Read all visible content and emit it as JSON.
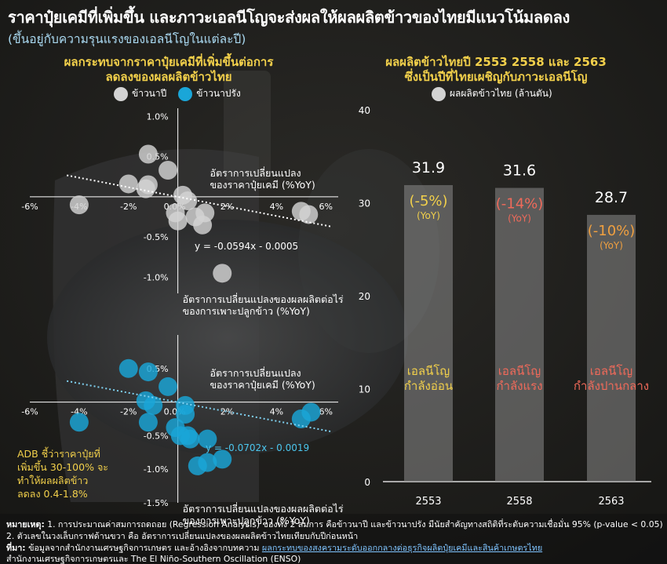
{
  "title": "ราคาปุ๋ยเคมีที่เพิ่มขึ้น และภาวะเอลนีโญจะส่งผลให้ผลผลิตข้าวของไทยมีแนวโน้มลดลง",
  "subtitle": "(ขึ้นอยู่กับความรุนแรงของเอลนีโญในแต่ละปี)",
  "colors": {
    "major_rice": "#d3d3d3",
    "offseason_rice": "#1aa6d8",
    "title_yellow": "#f2d04b",
    "bar": "#8a8a8a",
    "sub_orange": "#f0a040",
    "pct_red": "#f06a5a"
  },
  "left_panel": {
    "title_line1": "ผลกระทบจากราคาปุ๋ยเคมีที่เพิ่มขึ้นต่อการ",
    "title_line2": "ลดลงของผลผลิตข้าวไทย",
    "legend": [
      {
        "label": "ข้าวนาปี",
        "color": "#d3d3d3"
      },
      {
        "label": "ข้าวนาปรัง",
        "color": "#1aa6d8"
      }
    ]
  },
  "right_panel": {
    "title_line1": "ผลผลิตข้าวไทยปี 2553 2558 และ 2563",
    "title_line2": "ซึ่งเป็นปีที่ไทยเผชิญกับภาวะเอลนีโญ",
    "legend": {
      "label": "ผลผลิตข้าวไทย (ล้านตัน)",
      "color": "#d3d3d3"
    }
  },
  "chart_data": [
    {
      "type": "scatter",
      "series_name": "ข้าวนาปี",
      "x_ticks": [
        "-6%",
        "-4%",
        "-2%",
        "0.0%",
        "2%",
        "4%",
        "6%"
      ],
      "y_ticks": [
        "1.0%",
        "0.5%",
        "0.0%",
        "-0.5%",
        "-1.0%"
      ],
      "xlim": [
        -6,
        6.5
      ],
      "ylim": [
        -1.2,
        1.1
      ],
      "x_axis_label_l1": "อัตราการเปลี่ยนแปลง",
      "x_axis_label_l2": "ของราคาปุ๋ยเคมี (%YoY)",
      "y_axis_label_l1": "อัตราการเปลี่ยนแปลงของผลผลิตต่อไร่",
      "y_axis_label_l2": "ของการเพาะปลูกข้าว (%YoY)",
      "points": [
        [
          -1.2,
          0.53
        ],
        [
          -0.4,
          0.33
        ],
        [
          -2,
          0.16
        ],
        [
          -1.2,
          0.15
        ],
        [
          -1.3,
          0.1
        ],
        [
          -4,
          -0.1
        ],
        [
          0.2,
          0.02
        ],
        [
          0.4,
          -0.05
        ],
        [
          -0.1,
          -0.2
        ],
        [
          1.1,
          -0.2
        ],
        [
          0.7,
          -0.25
        ],
        [
          0,
          -0.3
        ],
        [
          1,
          -0.35
        ],
        [
          5,
          -0.18
        ],
        [
          5.3,
          -0.22
        ],
        [
          1.8,
          -0.95
        ]
      ],
      "trendline": {
        "slope": -0.0594,
        "intercept": -0.0005,
        "label": "y = -0.0594x - 0.0005"
      }
    },
    {
      "type": "scatter",
      "series_name": "ข้าวนาปรัง",
      "x_ticks": [
        "-6%",
        "-4%",
        "-2%",
        "0.0%",
        "2%",
        "4%",
        "6%"
      ],
      "y_ticks": [
        "0.5%",
        "0.0%",
        "-0.5%",
        "-1.0%",
        "-1.5%"
      ],
      "xlim": [
        -6,
        6.5
      ],
      "ylim": [
        -1.5,
        1.0
      ],
      "x_axis_label_l1": "อัตราการเปลี่ยนแปลง",
      "x_axis_label_l2": "ของราคาปุ๋ยเคมี (%YoY)",
      "y_axis_label_l1": "อัตราการเปลี่ยนแปลงของผลผลิตต่อไร่",
      "y_axis_label_l2": "ของการเพาะปลูกข้าว (%YoY)",
      "points": [
        [
          -2,
          0.5
        ],
        [
          -1.2,
          0.45
        ],
        [
          -0.4,
          0.23
        ],
        [
          -1.3,
          0.02
        ],
        [
          -1,
          -0.05
        ],
        [
          0.3,
          -0.05
        ],
        [
          0.3,
          -0.18
        ],
        [
          -0.1,
          -0.38
        ],
        [
          -4,
          -0.3
        ],
        [
          -1.2,
          -0.3
        ],
        [
          0.1,
          -0.5
        ],
        [
          0.4,
          -0.5
        ],
        [
          0.5,
          -0.55
        ],
        [
          1.2,
          -0.55
        ],
        [
          0.8,
          -0.95
        ],
        [
          1.2,
          -0.9
        ],
        [
          1.8,
          -0.85
        ],
        [
          5,
          -0.25
        ],
        [
          5.4,
          -0.15
        ]
      ],
      "trendline": {
        "slope": -0.0702,
        "intercept": -0.0019,
        "label": "y = -0.0702x - 0.0019"
      }
    },
    {
      "type": "bar",
      "categories": [
        "2553",
        "2558",
        "2563"
      ],
      "values": [
        31.9,
        31.6,
        28.7
      ],
      "value_labels": [
        "31.9",
        "31.6",
        "28.7"
      ],
      "ylim": [
        0,
        40
      ],
      "y_ticks": [
        "0",
        "10",
        "20",
        "30",
        "40"
      ],
      "pct_labels": [
        "(-5%)",
        "(-14%)",
        "(-10%)"
      ],
      "yoy_label": "(YoY)",
      "enso_l1": [
        "เอลนีโญ",
        "เอลนีโญ",
        "เอลนีโญ"
      ],
      "enso_l2": [
        "กำลังอ่อน",
        "กำลังแรง",
        "กำลังปานกลาง"
      ]
    }
  ],
  "adb_note": {
    "line1": "ADB ชี้ว่าราคาปุ๋ยที่",
    "line2": "เพิ่มขึ้น 30-100% จะ",
    "line3": "ทำให้ผลผลิตข้าว",
    "line4": "ลดลง 0.4-1.8%"
  },
  "footnotes": {
    "note_label": "หมายเหตุ:",
    "note1": "1. การประมาณค่าสมการถดถอย (Regression Analysis) ของทั้ง 2 สมการ คือข้าวนาปี และข้าวนาปรัง มีนัยสำคัญทางสถิติที่ระดับความเชื่อมั่น 95% (p-value < 0.05)",
    "note2": "2. ตัวเลขในวงเล็บกราฟด้านขวา คือ อัตราการเปลี่ยนแปลงของผลผลิตข้าวไทยเทียบกับปีก่อนหน้า",
    "source_label": "ที่มา:",
    "source_text": "ข้อมูลจากสำนักงานเศรษฐกิจการเกษตร และอ้างอิงจากบทความ",
    "source_link": "ผลกระทบของสงครามระดับออกกลางต่อธุรกิจผลิตปุ๋ยเคมีและสินค้าเกษตรไทย",
    "source_line2": "สำนักงานเศรษฐกิจการเกษตรและ The El Niño-Southern Oscillation (ENSO)"
  }
}
